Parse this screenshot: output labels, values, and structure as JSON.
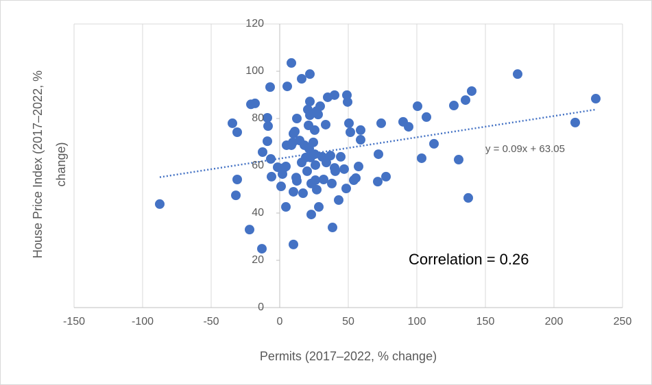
{
  "chart_data": {
    "type": "scatter",
    "xlabel": "Permits (2017–2022, % change)",
    "ylabel": "House Price Index (2017–2022, % change)",
    "annotation": "Correlation = 0.26",
    "trendline": {
      "label": "y = 0.09x + 63.05",
      "slope": 0.09,
      "intercept": 63.05,
      "color": "#4472c4"
    },
    "xlim": [
      -150,
      250
    ],
    "xticks": [
      -150,
      -100,
      -50,
      0,
      50,
      100,
      150,
      200,
      250
    ],
    "ylim": [
      0,
      120
    ],
    "yticks": [
      0,
      20,
      40,
      60,
      80,
      100,
      120
    ],
    "grid": true,
    "color": "#4472c4",
    "x": [
      -87.5,
      -34.5,
      -31,
      -31,
      -32,
      -22,
      -21,
      -18,
      -13,
      -12.5,
      -9,
      -8.5,
      -9,
      -7,
      -6,
      -6.5,
      -1.5,
      1,
      2,
      3,
      4.5,
      4.5,
      5,
      5.5,
      8.5,
      8.5,
      10,
      11,
      9.5,
      10,
      10,
      12,
      12.5,
      12.5,
      14.5,
      16,
      16,
      17,
      18,
      19,
      20,
      20.5,
      21,
      21.5,
      22,
      22,
      22,
      22.5,
      23,
      23,
      24.5,
      25.5,
      25.5,
      26,
      26,
      27,
      27,
      28.5,
      28,
      29.5,
      31,
      32,
      34,
      33.5,
      35,
      37,
      38,
      38.5,
      40,
      40,
      40.5,
      43,
      44.5,
      47,
      48.5,
      49,
      49.5,
      50.5,
      51.5,
      54,
      55.5,
      57.5,
      59,
      59,
      72,
      71.5,
      74,
      77.5,
      90,
      94,
      100.5,
      103.5,
      107,
      112.5,
      127,
      130.5,
      135.5,
      137.5,
      140,
      173.5,
      215.5,
      230.5
    ],
    "y": [
      43.8,
      78,
      74.2,
      54.2,
      47.5,
      33,
      86,
      86.4,
      24.9,
      65.8,
      80.3,
      76.8,
      70.4,
      93.3,
      55.4,
      62.9,
      59.4,
      51.3,
      56.5,
      59.1,
      59.7,
      42.6,
      68.7,
      93.6,
      103.5,
      68.7,
      73.6,
      74.5,
      69.9,
      49,
      26.7,
      55,
      80,
      53.6,
      70.7,
      61.4,
      96.8,
      48.4,
      68.7,
      63.5,
      57.7,
      83.8,
      77.1,
      67.2,
      98.8,
      81.4,
      87.2,
      63.5,
      52.5,
      39.4,
      69.9,
      64.9,
      75.1,
      60.3,
      53.9,
      49.9,
      83.2,
      42.6,
      81.7,
      85.2,
      63.8,
      54.2,
      61.4,
      77.4,
      89,
      64.3,
      52.5,
      33.9,
      89.9,
      59.1,
      57.7,
      45.5,
      63.8,
      58.6,
      50.4,
      89.9,
      87,
      78,
      74.2,
      53.9,
      54.8,
      59.7,
      75.1,
      71,
      64.9,
      53.3,
      78,
      55.4,
      78.6,
      76.5,
      85.2,
      63.2,
      80.6,
      69.3,
      85.5,
      62.6,
      87.8,
      46.4,
      91.6,
      98.8,
      78.3,
      88.4
    ]
  }
}
